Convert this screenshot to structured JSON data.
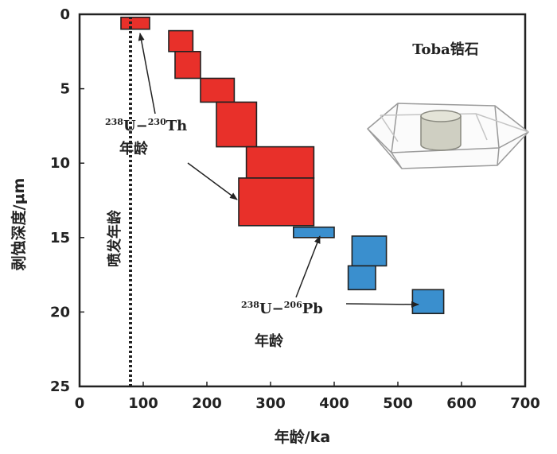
{
  "chart_data": {
    "type": "box",
    "xlabel": "年龄/ka",
    "ylabel": "剥蚀深度/μm",
    "xlim": [
      0,
      700
    ],
    "ylim": [
      0,
      25
    ],
    "y_inverted": true,
    "x_ticks": [
      0,
      100,
      200,
      300,
      400,
      500,
      600,
      700
    ],
    "y_ticks": [
      0,
      5,
      10,
      15,
      20,
      25
    ],
    "colors": {
      "U-Th": "#e8302a",
      "U-Pb": "#3a8fce",
      "frame": "#222222"
    },
    "series": [
      {
        "name": "238U-230Th 年龄",
        "color": "#e8302a",
        "boxes": [
          {
            "x0": 65,
            "x1": 110,
            "y0": 0.2,
            "y1": 1.0
          },
          {
            "x0": 140,
            "x1": 178,
            "y0": 1.1,
            "y1": 2.5
          },
          {
            "x0": 150,
            "x1": 190,
            "y0": 2.5,
            "y1": 4.3
          },
          {
            "x0": 190,
            "x1": 243,
            "y0": 4.3,
            "y1": 5.9
          },
          {
            "x0": 215,
            "x1": 278,
            "y0": 5.9,
            "y1": 8.9
          },
          {
            "x0": 262,
            "x1": 368,
            "y0": 8.9,
            "y1": 11.0
          },
          {
            "x0": 250,
            "x1": 368,
            "y0": 11.0,
            "y1": 14.2
          }
        ]
      },
      {
        "name": "238U-206Pb 年龄",
        "color": "#3a8fce",
        "boxes": [
          {
            "x0": 336,
            "x1": 400,
            "y0": 14.3,
            "y1": 15.0
          },
          {
            "x0": 428,
            "x1": 482,
            "y0": 14.9,
            "y1": 16.9
          },
          {
            "x0": 422,
            "x1": 465,
            "y0": 16.9,
            "y1": 18.5
          },
          {
            "x0": 523,
            "x1": 572,
            "y0": 18.5,
            "y1": 20.1
          }
        ]
      }
    ],
    "eruption_age_line": {
      "x": 80,
      "label": "喷发年龄"
    },
    "annotations": {
      "sample_label": "Toba锆石",
      "uth": {
        "sup1": "238",
        "u": "U",
        "dash": "−",
        "sup2": "230",
        "el": "Th",
        "word": "年龄"
      },
      "upb": {
        "sup1": "238",
        "u": "U",
        "dash": "−",
        "sup2": "206",
        "el": "Pb",
        "word": "年龄"
      }
    }
  }
}
